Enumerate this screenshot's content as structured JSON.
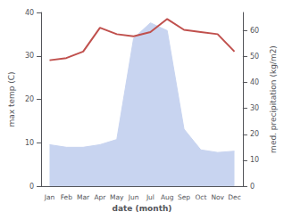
{
  "chart_data": {
    "type": "line",
    "categories": [
      "Jan",
      "Feb",
      "Mar",
      "Apr",
      "May",
      "Jun",
      "Jul",
      "Aug",
      "Sep",
      "Oct",
      "Nov",
      "Dec"
    ],
    "xlabel": "date (month)",
    "ylabel": "max temp (C)",
    "y2label": "med. precipitation (kg/m2)",
    "ylim": [
      0,
      40
    ],
    "yticks": [
      0,
      10,
      20,
      30,
      40
    ],
    "y2lim": [
      0,
      67
    ],
    "y2ticks": [
      0,
      10,
      20,
      30,
      40,
      50,
      60
    ],
    "grid": false,
    "series": [
      {
        "type": "area",
        "axis": "y2",
        "color": "#c8d4f0",
        "values": [
          16.0,
          15.0,
          15.0,
          16.0,
          18.0,
          57.0,
          63.0,
          60.0,
          22.0,
          14.0,
          13.0,
          13.5
        ]
      },
      {
        "type": "line",
        "color": "#c0504d",
        "values": [
          29.0,
          29.5,
          31.0,
          36.5,
          35.0,
          34.5,
          35.5,
          38.5,
          36.0,
          35.5,
          35.0,
          31.0
        ]
      }
    ]
  }
}
